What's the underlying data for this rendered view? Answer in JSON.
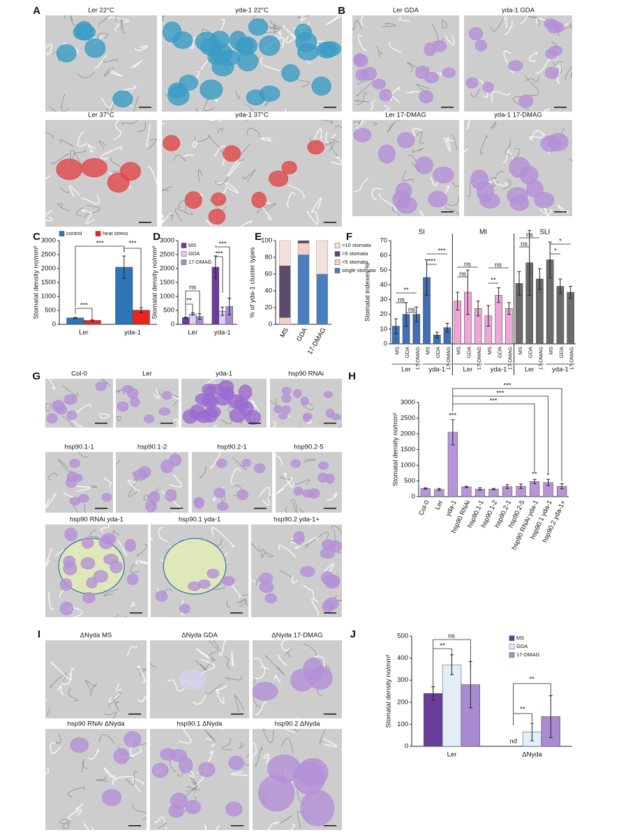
{
  "panel_letters": [
    "A",
    "B",
    "C",
    "D",
    "E",
    "F",
    "G",
    "H",
    "I",
    "J"
  ],
  "images": [
    "Ler 22°C",
    "yda-1 22°C",
    "Ler 37°C",
    "yda-1 37°C",
    "Ler  GDA",
    "yda-1 GDA",
    "Ler  17-DMAG",
    "yda-1 17-DMAG",
    "Col-0",
    "Ler",
    "yda-1",
    "hsp90 RNAi",
    "hsp90.1-1",
    "hsp90.1-2",
    "hsp90.2-1",
    "hsp90.2-5",
    "hsp90 RNAi yda-1",
    "hsp90.1 yda-1",
    "hsp90.2  yda-1+",
    "ΔNyda MS",
    "ΔNyda GDA",
    "ΔNyda 17-DMAG",
    "hsp90 RNAi ΔNyda",
    "hsp90.1 ΔNyda",
    "hsp90.2  ΔNyda"
  ],
  "chart_data": [
    {
      "type": "bar",
      "ylabel": "Stomatal density no/mm²",
      "categories": [
        "Ler",
        "yda-1"
      ],
      "series": [
        {
          "name": "control",
          "color": "#2e75b6",
          "values": [
            230,
            2050
          ],
          "errors": [
            20,
            400
          ]
        },
        {
          "name": "heat stress",
          "color": "#e8261f",
          "values": [
            140,
            510
          ],
          "errors": [
            20,
            90
          ]
        }
      ],
      "ylim": [
        0,
        3000
      ],
      "yticks": [
        0,
        500,
        1000,
        1500,
        2000,
        2500,
        3000
      ],
      "annotations": [
        "***",
        "***",
        "***"
      ]
    },
    {
      "type": "bar",
      "ylabel": "Stomatal density no/mm²",
      "categories": [
        "Ler",
        "yda-1"
      ],
      "series": [
        {
          "name": "MS",
          "color": "#6a3d9a",
          "values": [
            240,
            2050
          ],
          "errors": [
            30,
            400
          ]
        },
        {
          "name": "GDA",
          "color": "#dcd0ee",
          "values": [
            370,
            470
          ],
          "errors": [
            40,
            150
          ]
        },
        {
          "name": "17-DMAG",
          "color": "#a88bd0",
          "values": [
            280,
            640
          ],
          "errors": [
            100,
            300
          ]
        }
      ],
      "ylim": [
        0,
        3000
      ],
      "yticks": [
        0,
        500,
        1000,
        1500,
        2000,
        2500,
        3000
      ],
      "annotations": [
        "**",
        "ns",
        "***",
        "***"
      ]
    },
    {
      "type": "stacked_bar",
      "ylabel": "% of yda-1 cluster types",
      "categories": [
        "MS",
        "GDA",
        "17-DMAG"
      ],
      "series": [
        {
          "name": "single stomata",
          "color": "#4a7ebf",
          "values": [
            0,
            83,
            60
          ]
        },
        {
          "name": "<5 stomata",
          "color": "#f2cfc8",
          "values": [
            8,
            14,
            0
          ]
        },
        {
          "name": ">5 stomata",
          "color": "#5b4a6b",
          "values": [
            62,
            3,
            0
          ]
        },
        {
          "name": ">10 stomata",
          "color": "#f3e2dc",
          "values": [
            30,
            0,
            40
          ]
        }
      ],
      "ylim": [
        0,
        100
      ],
      "yticks": [
        0,
        20,
        40,
        60,
        80,
        100
      ]
    },
    {
      "type": "panel_bar",
      "ylabel": "Stomatal indexes %",
      "categories": [
        "MS",
        "GDA",
        "17-DMAG",
        "MS",
        "GDA",
        "17-DMAG"
      ],
      "genotypes": [
        "Ler",
        "yda-1"
      ],
      "groups": [
        {
          "name": "SI",
          "color": "#3f70b4",
          "values": [
            12,
            20,
            20,
            45,
            6,
            11
          ],
          "errors": [
            5,
            8,
            5,
            12,
            2,
            3
          ]
        },
        {
          "name": "MI",
          "color": "#f0a6d8",
          "values": [
            29,
            35,
            24,
            19,
            33,
            24
          ],
          "errors": [
            6,
            15,
            5,
            7,
            5,
            4
          ]
        },
        {
          "name": "SLI",
          "color": "#6b6b6b",
          "values": [
            41,
            55,
            44,
            57,
            39,
            35
          ],
          "errors": [
            8,
            22,
            7,
            12,
            5,
            4
          ]
        }
      ],
      "ylim": [
        0,
        70
      ],
      "yticks": [
        0,
        10,
        20,
        30,
        40,
        50,
        60,
        70
      ],
      "annotations": [
        "**",
        "ns",
        "ns",
        "***",
        "***",
        "ns",
        "ns",
        "**",
        "ns",
        "ns",
        "ns",
        "*",
        "*"
      ]
    },
    {
      "type": "bar",
      "ylabel": "Stomatal density no/mm²",
      "color": "#b894d8",
      "categories": [
        "Col-0",
        "Ler",
        "yda-1",
        "hsp90 RNAi",
        "hsp90.1-1",
        "hsp90.1-2",
        "hsp90.2-1",
        "hsp90.2-5",
        "hsp90 RNAi yda-1",
        "hsp90.1 yda-1",
        "hsp90.2 yda-1+"
      ],
      "values": [
        260,
        230,
        2050,
        310,
        240,
        240,
        320,
        330,
        480,
        450,
        330
      ],
      "errors": [
        20,
        30,
        400,
        20,
        40,
        20,
        60,
        70,
        70,
        100,
        80
      ],
      "ylim": [
        0,
        3000
      ],
      "yticks": [
        0,
        500,
        1000,
        1500,
        2000,
        2500,
        3000
      ],
      "annotations": [
        "***",
        "**",
        "*",
        "***",
        "***",
        "***"
      ]
    },
    {
      "type": "bar",
      "ylabel": "Stomatal density no/mm²",
      "categories": [
        "Ler",
        "ΔNyda"
      ],
      "series": [
        {
          "name": "MS",
          "color": "#6a3d9a",
          "values": [
            240,
            null
          ],
          "errors": [
            30,
            null
          ]
        },
        {
          "name": "GDA",
          "color": "#e4eef8",
          "values": [
            370,
            65
          ],
          "errors": [
            45,
            40
          ]
        },
        {
          "name": "17-DMAG",
          "color": "#a88bd0",
          "values": [
            280,
            135
          ],
          "errors": [
            105,
            95
          ]
        }
      ],
      "ylim": [
        0,
        500
      ],
      "yticks": [
        0,
        100,
        200,
        300,
        400,
        500
      ],
      "annotations": [
        "nd",
        "**",
        "ns",
        "**",
        "**"
      ]
    }
  ]
}
